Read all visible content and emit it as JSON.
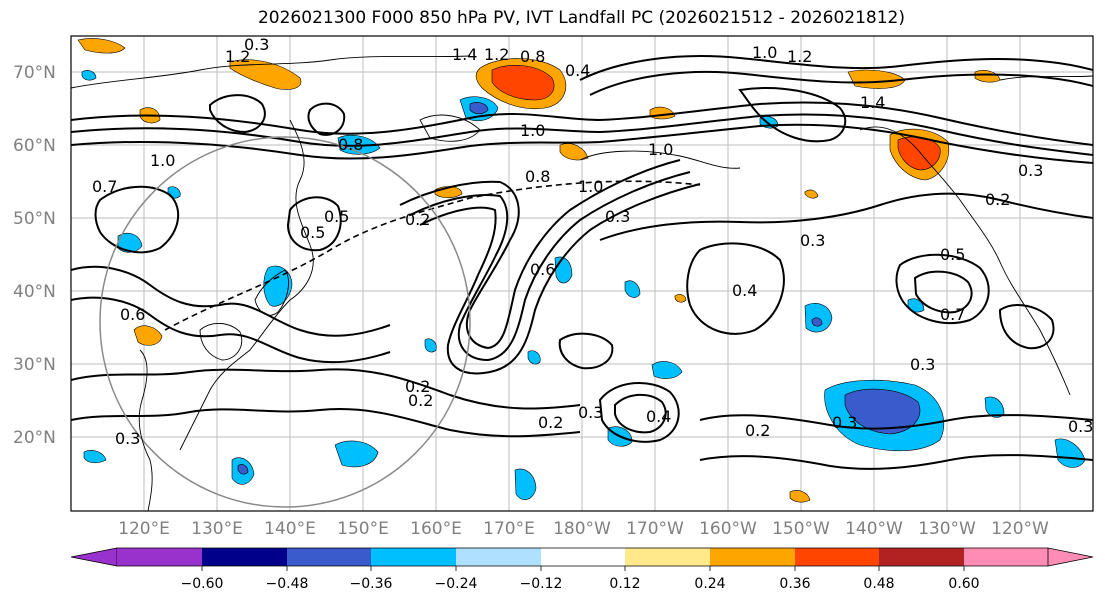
{
  "title": "2026021300 F000 850 hPa PV, IVT Landfall PC (2026021512 - 2026021812)",
  "lat_labels": [
    "70°N",
    "60°N",
    "50°N",
    "40°N",
    "30°N",
    "20°N"
  ],
  "lon_labels": [
    "120°E",
    "130°E",
    "140°E",
    "150°E",
    "160°E",
    "170°E",
    "180°W",
    "170°W",
    "160°W",
    "150°W",
    "140°W",
    "130°W",
    "120°W"
  ],
  "colorbar": {
    "ticks": [
      "−0.60",
      "−0.48",
      "−0.36",
      "−0.24",
      "−0.12",
      "0.12",
      "0.24",
      "0.36",
      "0.48",
      "0.60"
    ],
    "colors": [
      "#9932cc",
      "#00008b",
      "#3a5bcc",
      "#00bfff",
      "#b0e0ff",
      "#ffffff",
      "#ffe98a",
      "#ffa500",
      "#ff4500",
      "#b22222",
      "#ff8cb4"
    ]
  },
  "contour_labels": [
    "0.3",
    "1.4",
    "1.2",
    "0.8",
    "1.0",
    "1.2",
    "1.0",
    "1.2",
    "1.4",
    "0.4",
    "0.8",
    "1.0",
    "0.8",
    "1.0",
    "1.0",
    "0.7",
    "0.5",
    "0.2",
    "0.3",
    "0.5",
    "0.6",
    "0.3",
    "0.2",
    "0.3",
    "0.5",
    "0.7",
    "0.4",
    "0.3",
    "0.2",
    "0.3",
    "0.4",
    "0.2",
    "0.3",
    "0.3",
    "0.2",
    "0.3",
    "0.2",
    "0.6"
  ]
}
